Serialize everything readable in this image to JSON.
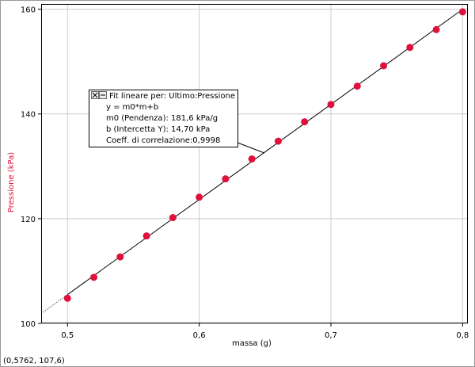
{
  "chart_data": {
    "type": "scatter",
    "x_label": "massa (g)",
    "y_label": "Pressione (kPa)",
    "x": [
      0.5,
      0.52,
      0.54,
      0.56,
      0.58,
      0.6,
      0.62,
      0.64,
      0.66,
      0.68,
      0.7,
      0.72,
      0.74,
      0.76,
      0.78,
      0.8
    ],
    "series": [
      {
        "name": "Pressione",
        "color": "#e0103c",
        "values": [
          104.8,
          108.8,
          112.7,
          116.7,
          120.2,
          124.1,
          127.6,
          131.4,
          134.8,
          138.5,
          141.8,
          145.3,
          149.2,
          152.7,
          156.1,
          159.5
        ]
      }
    ],
    "xlim": [
      0.48,
      0.804
    ],
    "ylim": [
      100,
      161
    ],
    "xticks": [
      {
        "value": 0.5,
        "label": "0,5"
      },
      {
        "value": 0.6,
        "label": "0,6"
      },
      {
        "value": 0.7,
        "label": "0,7"
      },
      {
        "value": 0.8,
        "label": "0,8"
      }
    ],
    "yticks": [
      100,
      120,
      140,
      160
    ],
    "grid": true,
    "fit": {
      "title": "Fit lineare per:  Ultimo:Pressione",
      "equation": "y = m0*m+b",
      "slope": {
        "value": 181.6,
        "label": "m0 (Pendenza): 181,6 kPa/g"
      },
      "intercept": {
        "value": 14.7,
        "label": "b (Intercetta Y): 14,70 kPa"
      },
      "correlation": "Coeff. di correlazione:0,9998"
    },
    "status": "(0,5762, 107,6)"
  }
}
